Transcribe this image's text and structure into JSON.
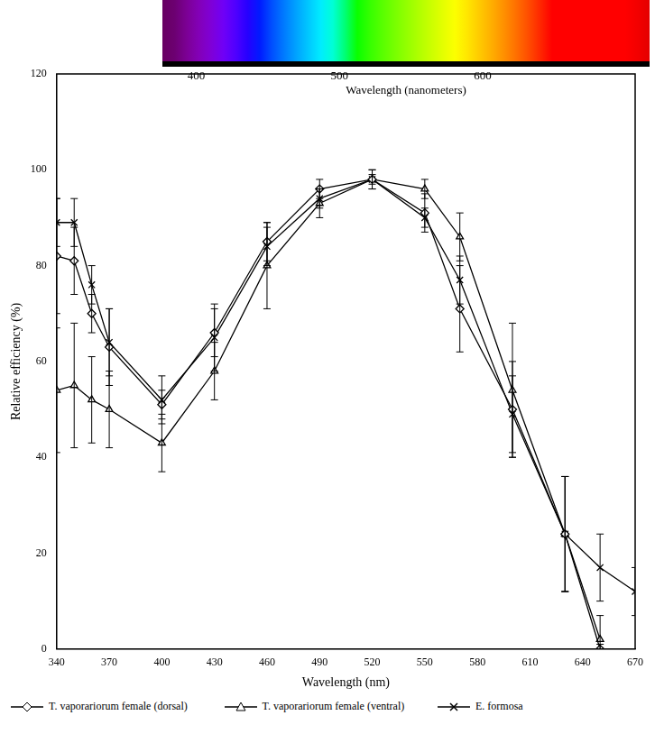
{
  "chart_data": {
    "type": "line",
    "x_label": "Wavelength (nm)",
    "y_label": "Relative efficiency (%)",
    "xlim": [
      340,
      670
    ],
    "xticks": [
      340,
      370,
      400,
      430,
      460,
      490,
      520,
      550,
      580,
      610,
      640,
      670
    ],
    "ylim": [
      0,
      120
    ],
    "yticks": [
      0,
      20,
      40,
      60,
      80,
      100,
      120
    ],
    "grid": false,
    "legend": "bottom",
    "series": [
      {
        "name": "T. vaporariorum female (dorsal)",
        "color": "#000000",
        "marker": "diamond",
        "line_style": "solid",
        "x": [
          340,
          350,
          360,
          370,
          400,
          430,
          460,
          490,
          520,
          550,
          570,
          600,
          630,
          650
        ],
        "values": [
          82,
          81,
          70,
          63,
          51,
          66,
          85,
          96,
          98,
          91,
          71,
          50,
          24,
          0
        ],
        "errors": [
          12,
          7,
          4,
          8,
          3,
          5,
          4,
          2,
          2,
          4,
          9,
          10,
          12,
          1
        ]
      },
      {
        "name": "T. vaporariorum female (ventral)",
        "color": "#000000",
        "marker": "triangle",
        "line_style": "solid",
        "x": [
          340,
          350,
          360,
          370,
          400,
          430,
          460,
          490,
          520,
          550,
          570,
          600,
          630,
          650
        ],
        "values": [
          54,
          55,
          52,
          50,
          43,
          58,
          80,
          93,
          98,
          96,
          86,
          54,
          24,
          2
        ],
        "errors": [
          13,
          13,
          9,
          8,
          6,
          6,
          9,
          3,
          2,
          2,
          5,
          14,
          12,
          5
        ]
      },
      {
        "name": "E. formosa",
        "color": "#000000",
        "marker": "x",
        "line_style": "solid",
        "x": [
          340,
          350,
          360,
          370,
          400,
          430,
          460,
          490,
          520,
          550,
          570,
          600,
          630,
          650,
          670
        ],
        "values": [
          89,
          89,
          76,
          64,
          52,
          65,
          84,
          94,
          98,
          90,
          77,
          49,
          24,
          17,
          12
        ],
        "errors": [
          5,
          5,
          4,
          7,
          5,
          7,
          4,
          2,
          1,
          2,
          5,
          8,
          12,
          7,
          5
        ]
      }
    ],
    "spectrum_bar": {
      "title": "Wavelength (nanometers)",
      "range": [
        375,
        715
      ],
      "ticks": [
        400,
        500,
        600
      ]
    }
  }
}
